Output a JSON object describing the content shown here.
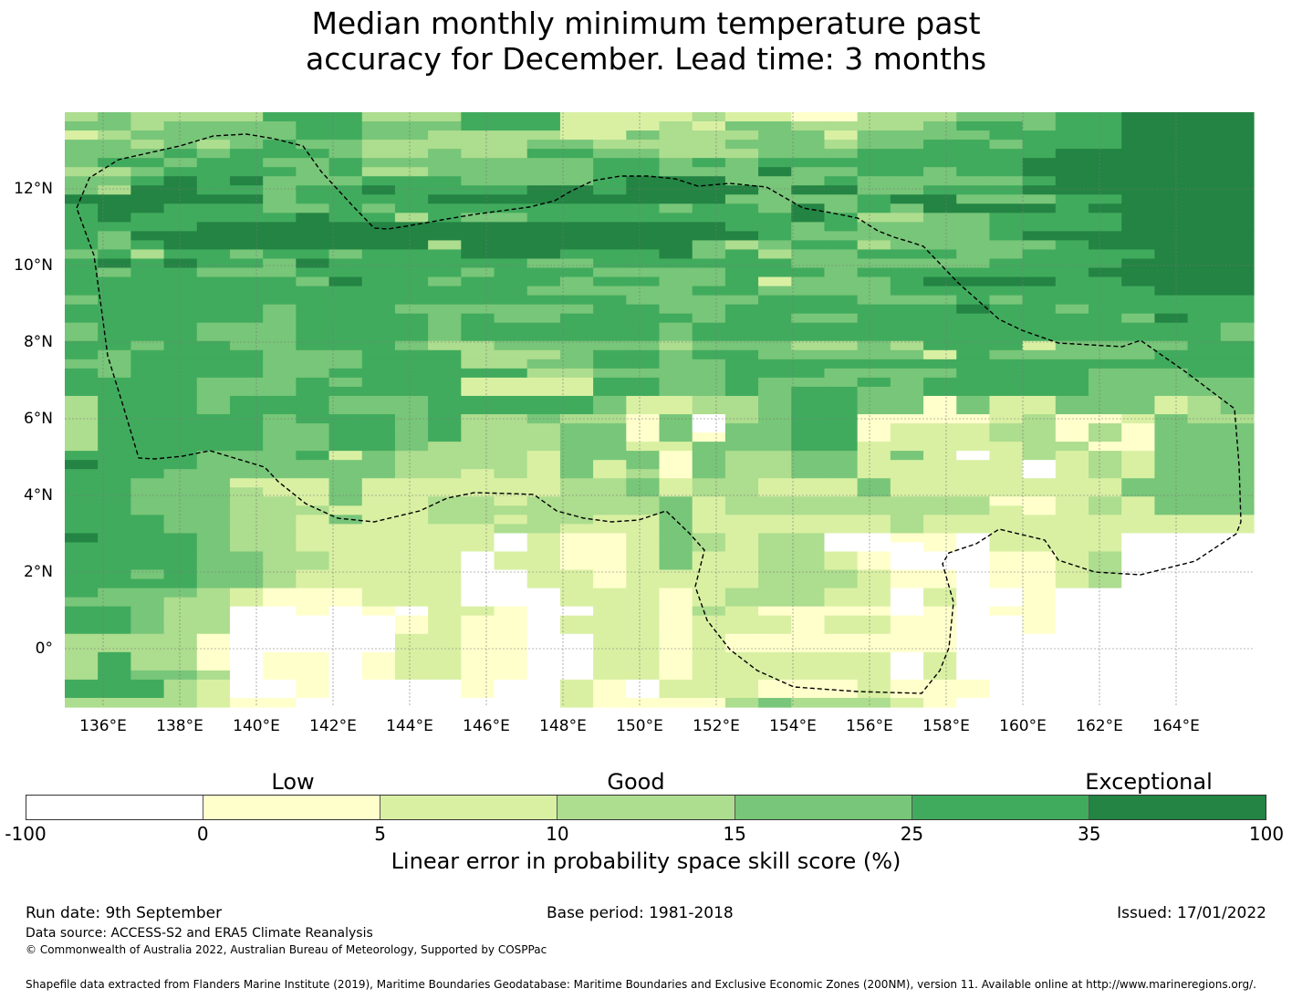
{
  "title_line1": "Median monthly minimum temperature past",
  "title_line2": "accuracy for December. Lead time: 3 months",
  "lon_labels": [
    "136°E",
    "138°E",
    "140°E",
    "142°E",
    "144°E",
    "146°E",
    "148°E",
    "150°E",
    "152°E",
    "154°E",
    "156°E",
    "158°E",
    "160°E",
    "162°E",
    "164°E"
  ],
  "lat_labels": [
    "12°N",
    "10°N",
    "8°N",
    "6°N",
    "4°N",
    "2°N",
    "0°"
  ],
  "categories": {
    "low": "Low",
    "good": "Good",
    "exceptional": "Exceptional"
  },
  "colorbar": {
    "ticks": [
      "-100",
      "0",
      "5",
      "10",
      "15",
      "25",
      "35",
      "100"
    ],
    "colors": [
      "#ffffff",
      "#ffffcc",
      "#d9f0a3",
      "#addd8e",
      "#78c679",
      "#41ab5d",
      "#238443"
    ],
    "title": "Linear error in probability space skill score (%)"
  },
  "footer": {
    "run_date": "Run date: 9th September",
    "base_period": "Base period: 1981-2018",
    "issued": "Issued: 17/01/2022",
    "data_source": "Data source: ACCESS-S2 and ERA5 Climate Reanalysis",
    "copyright": "© Commonwealth of Australia 2022, Australian Bureau of Meteorology, Supported by COSPPac",
    "shapefile": "Shapefile data extracted from Flanders Marine Institute (2019), Maritime Boundaries Geodatabase: Maritime Boundaries and Exclusive Economic Zones (200NM), version 11. Available online at http://www.marineregions.org/."
  },
  "grid_rows": [
    "343333555333555222232211333444556666",
    "443444455444555222324433334554556666",
    "234444455443333224333442444455556666",
    "443434544333334433334443445545556666",
    "444545554334335544333444555555666666",
    "455455445444444455454555555556666666",
    "334555545334444455444644554556666666",
    "445656444555444456664445444445666666",
    "436655455655556656666466445556666666",
    "666666455556666666664444566444556666",
    "566555445455555555455464546666566666",
    "565555565535445555555565334455556666",
    "555566666666666666665545444455556666",
    "546666666666666666666544444456666666",
    "545666666663666666643455344444566666",
    "453554554555666555645344555445555666",
    "565655465555554455555544444455556666",
    "545544455555455544445554555555566666",
    "555555546554555455445244456666556666",
    "555555555555554444455444455555555666",
    "455555555555555554444555444545555555",
    "555555455544444455445555555655455555",
    "555555455554544555545544555555554655",
    "455544455554555555455555555555555554",
    "455544455554555555455555555555555554",
    "554554455543344444344433435552444455",
    "545555444555333455455444442544444555",
    "445555444555334455445555555555555555",
    "545555445555553344445554444555544455",
    "555544454555222255445444545555544444",
    "555544455555222255445455445555544444",
    "355545554445555542233455441422444234",
    "355545554445555542233455441422444234",
    "355555455545334331403455111123112433",
    "355555445545333441404455122233131444",
    "355555445545333441414455122233131444",
    "355555445543333442244455222223311444",
    "555544452433332444143344242023232444",
    "655544444433332424143344222220232444",
    "555444444433232423143344222220232444",
    "554442224222222334233222422222224444",
    "554443224222222334233222422222224444",
    "554443324223323333423333333311232444",
    "554443332223333333423333333321232444",
    "555443324223323322422222232222222222",
    "555443322222233222422222232222222222",
    "655543322222202112432330011022220000",
    "555543322222202112432330001022220000",
    "555544332222022112422332100011230000",
    "555544332222022112422332100011230000",
    "554544322222002212222333211011230000",
    "555544322222002212222333211011230000",
    "544432111222000222123332202001000000",
    "444332111222000222123332202001000000",
    "554330010102210022132111101011000000",
    "554330000012110222122212211001000000",
    "554330000012110222122212211001000000",
    "333310000022110022121111111000000000",
    "333310000022110022121111111000000000",
    "353310110122110022122222202000000000",
    "353310110122110022122222202000000000",
    "354430110122110022122222202000000000",
    "555320010000100210222111211100000000",
    "555320010000100210222111211100000000",
    "333321100000000211113433321000000000"
  ]
}
